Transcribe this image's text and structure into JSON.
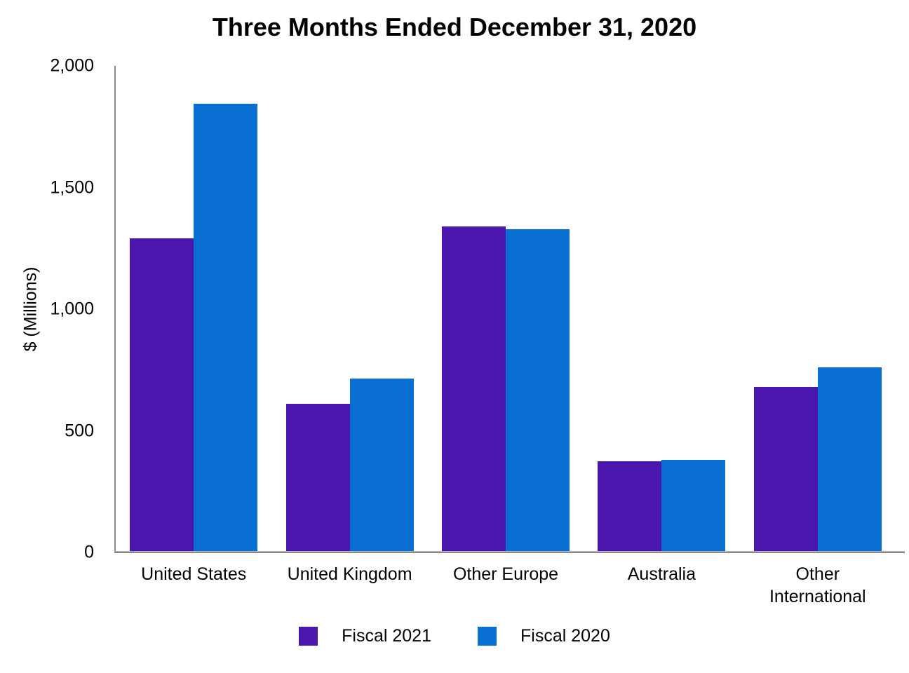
{
  "chart_data": {
    "type": "bar",
    "title": "Three Months Ended December 31, 2020",
    "ylabel": "$ (Millions)",
    "categories": [
      "United States",
      "United Kingdom",
      "Other Europe",
      "Australia",
      "Other International"
    ],
    "series": [
      {
        "name": "Fiscal 2021",
        "color": "#4A16AD",
        "values": [
          1290,
          610,
          1340,
          375,
          680
        ]
      },
      {
        "name": "Fiscal 2020",
        "color": "#0A6FD2",
        "values": [
          1845,
          715,
          1330,
          380,
          760
        ]
      }
    ],
    "ylim": [
      0,
      2000
    ],
    "yticks": [
      {
        "value": 0,
        "label": "0"
      },
      {
        "value": 500,
        "label": "500"
      },
      {
        "value": 1000,
        "label": "1,000"
      },
      {
        "value": 1500,
        "label": "1,500"
      },
      {
        "value": 2000,
        "label": "2,000"
      }
    ],
    "grid": false,
    "legend_position": "bottom",
    "axis_color": "#8a8a8a",
    "background": "#ffffff"
  }
}
